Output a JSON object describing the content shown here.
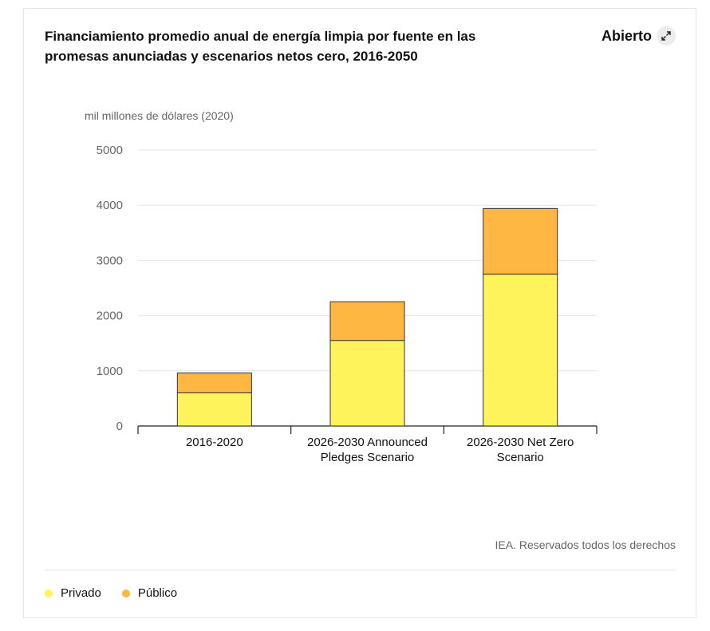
{
  "header": {
    "title": "Financiamiento promedio anual de energía limpia por fuente en las promesas anunciadas y escenarios netos cero, 2016-2050",
    "open_label": "Abierto",
    "open_icon": "expand-icon"
  },
  "footer": {
    "copyright": "IEA. Reservados todos los derechos"
  },
  "colors": {
    "privado": "#fff35c",
    "publico": "#ffb743",
    "grid": "#e6e6e6",
    "axis": "#222222",
    "bar_outline": "#333333"
  },
  "chart_data": {
    "type": "bar",
    "stacked": true,
    "title": "Financiamiento promedio anual de energía limpia por fuente en las promesas anunciadas y escenarios netos cero, 2016-2050",
    "ylabel": "mil millones de dólares (2020)",
    "xlabel": "",
    "ylim": [
      0,
      5000
    ],
    "yticks": [
      0,
      1000,
      2000,
      3000,
      4000,
      5000
    ],
    "categories": [
      [
        "2016-2020"
      ],
      [
        "2026-2030 Announced",
        "Pledges Scenario"
      ],
      [
        "2026-2030 Net Zero",
        "Scenario"
      ]
    ],
    "series": [
      {
        "name": "Privado",
        "color_key": "privado",
        "values": [
          600,
          1550,
          2750
        ]
      },
      {
        "name": "Público",
        "color_key": "publico",
        "values": [
          360,
          700,
          1190
        ]
      }
    ],
    "grid": true,
    "legend_position": "bottom-left"
  }
}
